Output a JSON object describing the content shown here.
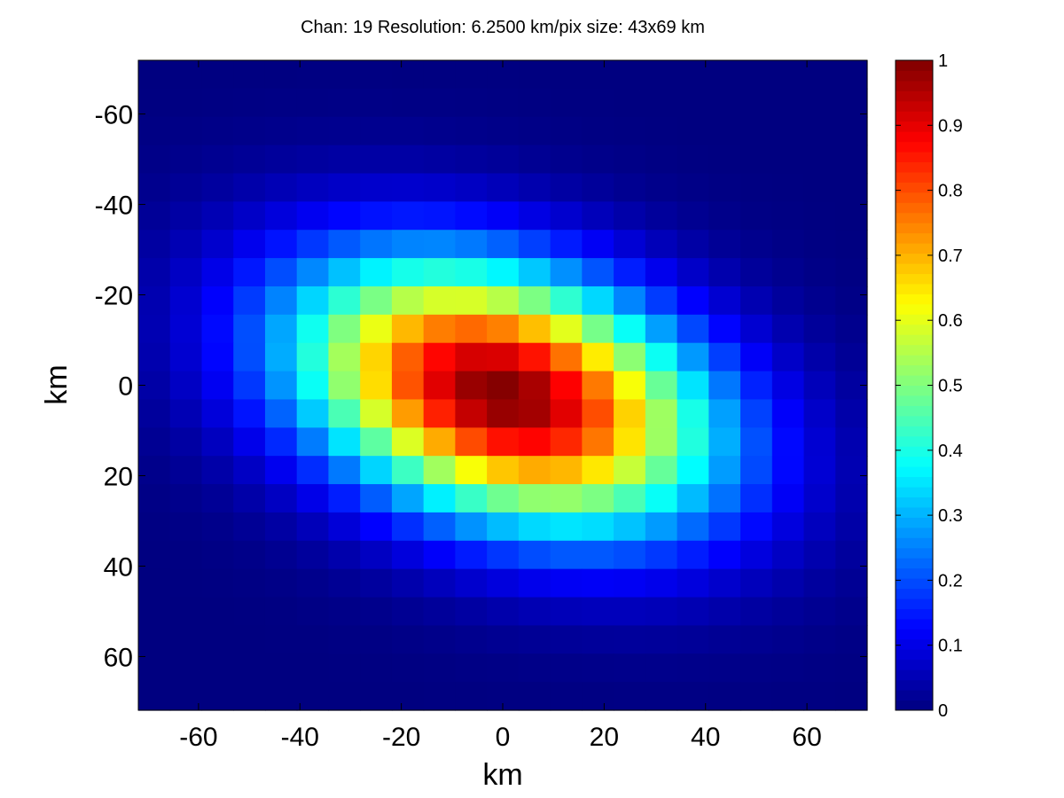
{
  "chart_data": {
    "type": "heatmap",
    "title": "Chan: 19  Resolution: 6.2500 km/pix  size: 43x69 km",
    "xlabel": "km",
    "ylabel": "km",
    "xlim": [
      -71.875,
      71.875
    ],
    "ylim": [
      -71.875,
      71.875
    ],
    "y_axis_reversed": true,
    "pixel_size_km": 6.25,
    "x_ticks": [
      -60,
      -40,
      -20,
      0,
      20,
      40,
      60
    ],
    "x_tick_labels": [
      "-60",
      "-40",
      "-20",
      "0",
      "20",
      "40",
      "60"
    ],
    "y_ticks": [
      -60,
      -40,
      -20,
      0,
      20,
      40,
      60
    ],
    "y_tick_labels": [
      "-60",
      "-40",
      "-20",
      "0",
      "20",
      "40",
      "60"
    ],
    "colormap": "jet",
    "colorbar": {
      "range": [
        0,
        1
      ],
      "ticks": [
        0,
        0.1,
        0.2,
        0.3,
        0.4,
        0.5,
        0.6,
        0.7,
        0.8,
        0.9,
        1
      ],
      "tick_labels": [
        "0",
        "0.1",
        "0.2",
        "0.3",
        "0.4",
        "0.5",
        "0.6",
        "0.7",
        "0.8",
        "0.9",
        "1"
      ]
    },
    "grid": false,
    "field": {
      "form": "elliptical gaussian",
      "peak": 1.0,
      "center_x_km": 0,
      "center_y_km": 2,
      "major_axis_km": 69,
      "minor_axis_km": 43,
      "orientation_deg": 22,
      "n_cells": 23
    }
  }
}
